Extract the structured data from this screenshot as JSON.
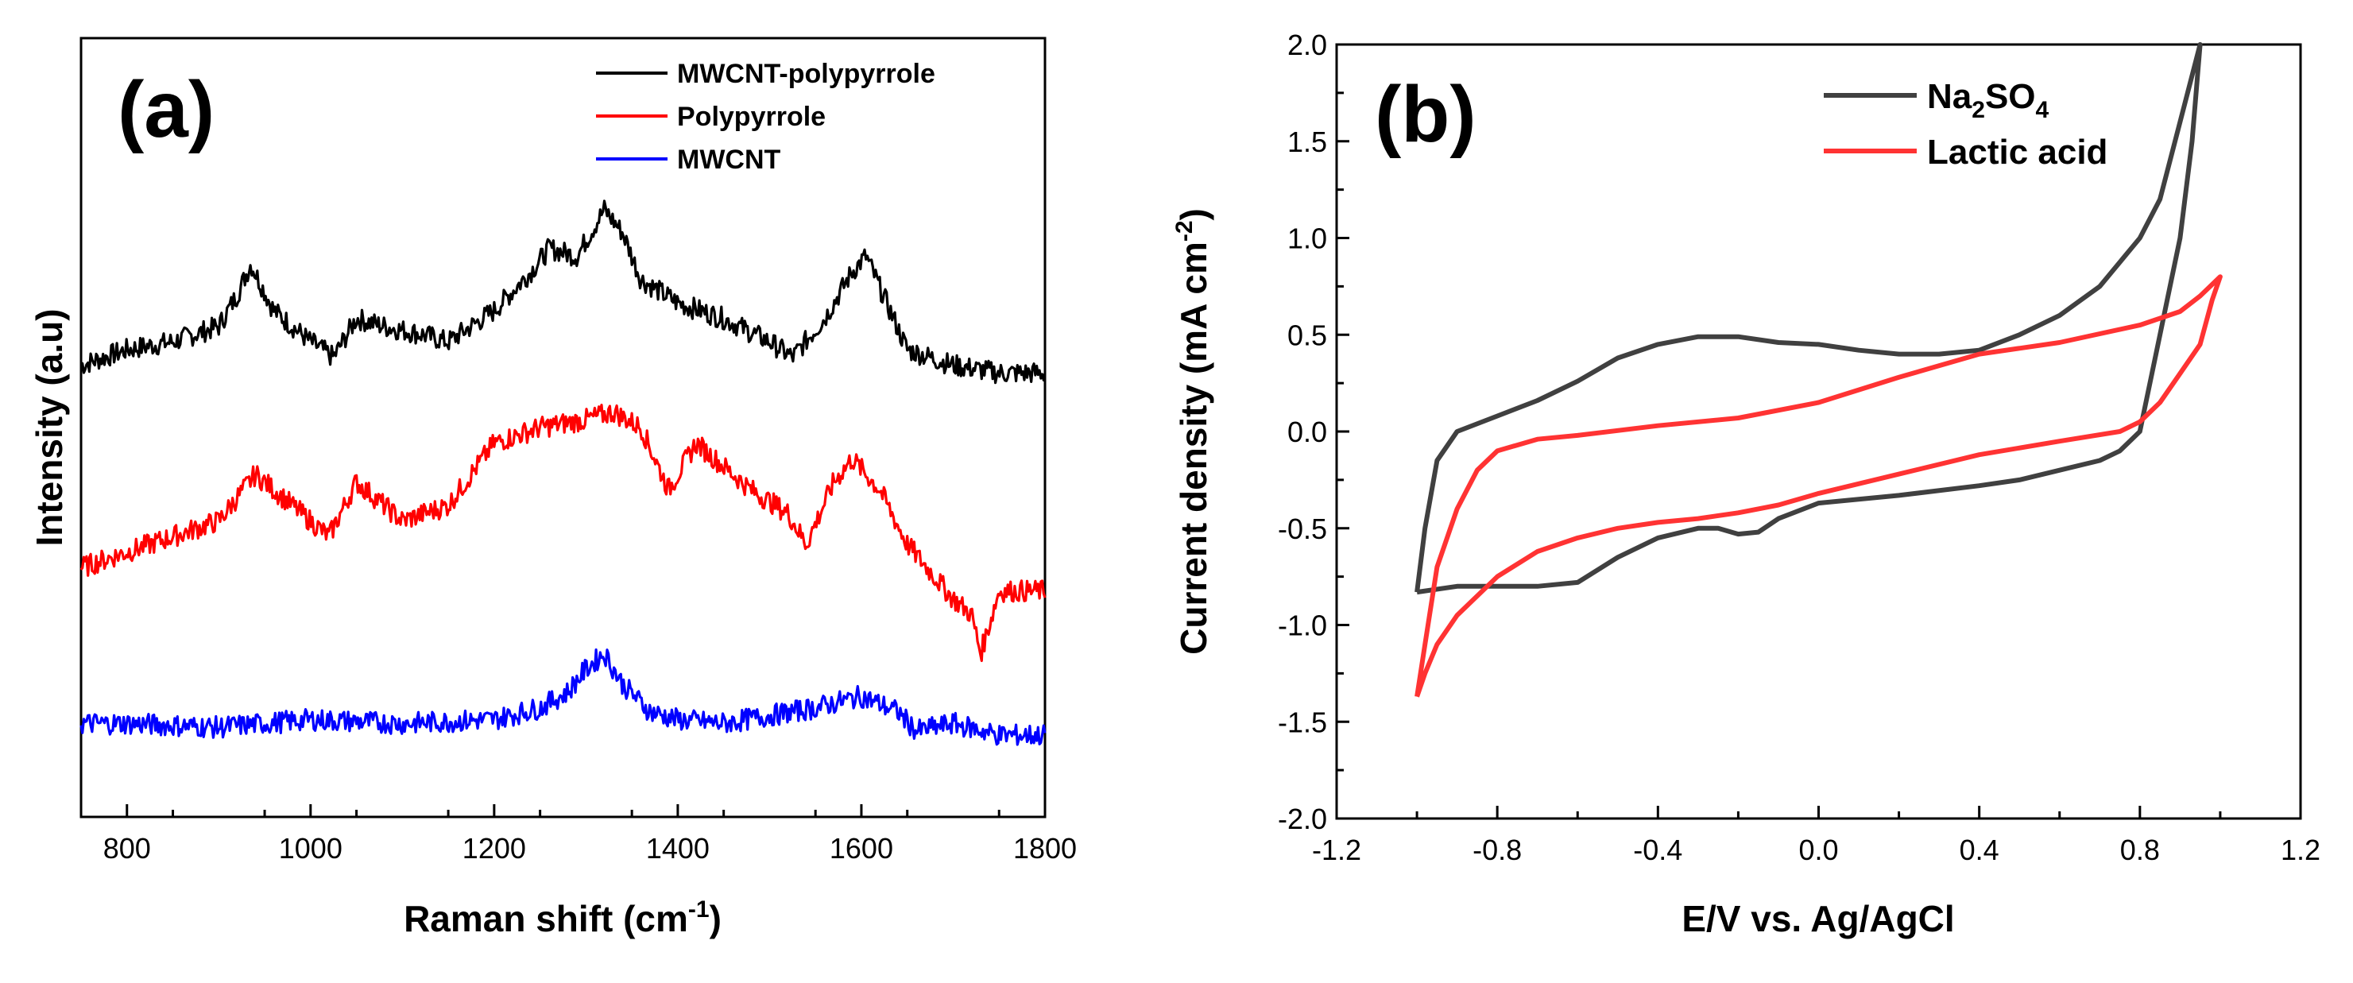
{
  "chart_data": [
    {
      "type": "line",
      "panel_label": "(a)",
      "xlabel": "Raman shift (cm",
      "xlabel_sup": "-1",
      "xlabel_tail": ")",
      "ylabel": "Intensity (a.u)",
      "xlim": [
        750,
        1800
      ],
      "ylim": [
        0,
        10
      ],
      "xticks": [
        800,
        1000,
        1200,
        1400,
        1600,
        1800
      ],
      "yticks_shown": false,
      "legend_position": "top-right",
      "series": [
        {
          "name": "MWCNT-polypyrrole",
          "color": "#000000",
          "x": [
            750,
            800,
            850,
            900,
            920,
            935,
            960,
            1000,
            1025,
            1050,
            1080,
            1120,
            1150,
            1200,
            1240,
            1260,
            1290,
            1320,
            1340,
            1360,
            1400,
            1450,
            1500,
            1525,
            1560,
            1590,
            1605,
            1620,
            1650,
            1700,
            1750,
            1800
          ],
          "values": [
            5.8,
            6.0,
            6.1,
            6.3,
            6.7,
            7.1,
            6.5,
            6.1,
            5.9,
            6.4,
            6.3,
            6.2,
            6.1,
            6.5,
            7.0,
            7.3,
            7.2,
            7.8,
            7.5,
            6.9,
            6.6,
            6.4,
            6.1,
            5.9,
            6.4,
            7.0,
            7.2,
            6.8,
            6.0,
            5.8,
            5.7,
            5.7
          ]
        },
        {
          "name": "Polypyrrole",
          "color": "#ff0000",
          "x": [
            750,
            800,
            850,
            900,
            940,
            980,
            1020,
            1050,
            1080,
            1100,
            1150,
            1200,
            1250,
            1300,
            1330,
            1360,
            1390,
            1420,
            1440,
            1480,
            1520,
            1540,
            1570,
            1590,
            1620,
            1650,
            1700,
            1720,
            1730,
            1750,
            1800
          ],
          "values": [
            3.2,
            3.4,
            3.6,
            3.8,
            4.4,
            4.0,
            3.6,
            4.3,
            4.0,
            3.8,
            4.0,
            4.8,
            5.0,
            5.1,
            5.2,
            5.0,
            4.2,
            4.8,
            4.6,
            4.2,
            3.9,
            3.5,
            4.3,
            4.6,
            4.2,
            3.5,
            2.8,
            2.6,
            2.1,
            2.9,
            2.9
          ]
        },
        {
          "name": "MWCNT",
          "color": "#0000ff",
          "x": [
            750,
            800,
            900,
            1000,
            1100,
            1200,
            1250,
            1280,
            1300,
            1320,
            1340,
            1370,
            1400,
            1450,
            1500,
            1550,
            1600,
            1640,
            1660,
            1700,
            1750,
            1800
          ],
          "values": [
            1.2,
            1.2,
            1.15,
            1.25,
            1.2,
            1.25,
            1.4,
            1.6,
            1.9,
            2.1,
            1.7,
            1.35,
            1.25,
            1.2,
            1.3,
            1.4,
            1.55,
            1.35,
            1.1,
            1.2,
            1.05,
            1.05
          ]
        }
      ]
    },
    {
      "type": "line",
      "panel_label": "(b)",
      "xlabel": "E/V vs. Ag/AgCl",
      "ylabel": "Current density (mA cm",
      "ylabel_sup": "-2",
      "ylabel_tail": ")",
      "xlim": [
        -1.2,
        1.2
      ],
      "ylim": [
        -2.0,
        2.0
      ],
      "xticks": [
        -1.2,
        -0.8,
        -0.4,
        0.0,
        0.4,
        0.8,
        1.2
      ],
      "xtick_labels": [
        "-1.2",
        "-0.8",
        "-0.4",
        "0.0",
        "0.4",
        "0.8",
        "1.2"
      ],
      "yticks": [
        -2.0,
        -1.5,
        -1.0,
        -0.5,
        0.0,
        0.5,
        1.0,
        1.5,
        2.0
      ],
      "ytick_labels": [
        "-2.0",
        "-1.5",
        "-1.0",
        "-0.5",
        "0.0",
        "0.5",
        "1.0",
        "1.5",
        "2.0"
      ],
      "legend_position": "top-right",
      "series": [
        {
          "name": "Na",
          "name_sub": "2",
          "name_tail": "SO",
          "name_sub2": "4",
          "color": "#404040",
          "x": [
            -1.0,
            -0.98,
            -0.95,
            -0.9,
            -0.8,
            -0.7,
            -0.6,
            -0.5,
            -0.4,
            -0.3,
            -0.2,
            -0.1,
            0.0,
            0.1,
            0.2,
            0.3,
            0.4,
            0.5,
            0.6,
            0.7,
            0.8,
            0.85,
            0.9,
            0.95,
            0.93,
            0.9,
            0.85,
            0.8,
            0.75,
            0.7,
            0.6,
            0.5,
            0.4,
            0.2,
            0.0,
            -0.1,
            -0.15,
            -0.2,
            -0.25,
            -0.3,
            -0.4,
            -0.5,
            -0.6,
            -0.7,
            -0.8,
            -0.9,
            -1.0,
            -1.0
          ],
          "values": [
            -0.83,
            -0.5,
            -0.15,
            0.0,
            0.08,
            0.16,
            0.26,
            0.38,
            0.45,
            0.49,
            0.49,
            0.46,
            0.45,
            0.42,
            0.4,
            0.4,
            0.42,
            0.5,
            0.6,
            0.75,
            1.0,
            1.2,
            1.6,
            2.0,
            1.5,
            1.0,
            0.5,
            0.0,
            -0.1,
            -0.15,
            -0.2,
            -0.25,
            -0.28,
            -0.33,
            -0.37,
            -0.45,
            -0.52,
            -0.53,
            -0.5,
            -0.5,
            -0.55,
            -0.65,
            -0.78,
            -0.8,
            -0.8,
            -0.8,
            -0.83,
            -0.83
          ]
        },
        {
          "name": "Lactic acid",
          "color": "#ff3333",
          "x": [
            -1.0,
            -0.98,
            -0.95,
            -0.9,
            -0.85,
            -0.8,
            -0.7,
            -0.6,
            -0.4,
            -0.2,
            0.0,
            0.2,
            0.4,
            0.6,
            0.8,
            0.9,
            0.95,
            0.98,
            1.0,
            0.98,
            0.95,
            0.9,
            0.85,
            0.8,
            0.75,
            0.6,
            0.4,
            0.2,
            0.0,
            -0.1,
            -0.2,
            -0.3,
            -0.4,
            -0.5,
            -0.6,
            -0.7,
            -0.8,
            -0.9,
            -0.95,
            -0.98,
            -1.0
          ],
          "values": [
            -1.37,
            -1.1,
            -0.7,
            -0.4,
            -0.2,
            -0.1,
            -0.04,
            -0.02,
            0.03,
            0.07,
            0.15,
            0.28,
            0.4,
            0.46,
            0.55,
            0.62,
            0.7,
            0.76,
            0.8,
            0.68,
            0.45,
            0.3,
            0.15,
            0.05,
            0.0,
            -0.05,
            -0.12,
            -0.22,
            -0.32,
            -0.38,
            -0.42,
            -0.45,
            -0.47,
            -0.5,
            -0.55,
            -0.62,
            -0.75,
            -0.95,
            -1.1,
            -1.25,
            -1.37
          ]
        }
      ]
    }
  ]
}
